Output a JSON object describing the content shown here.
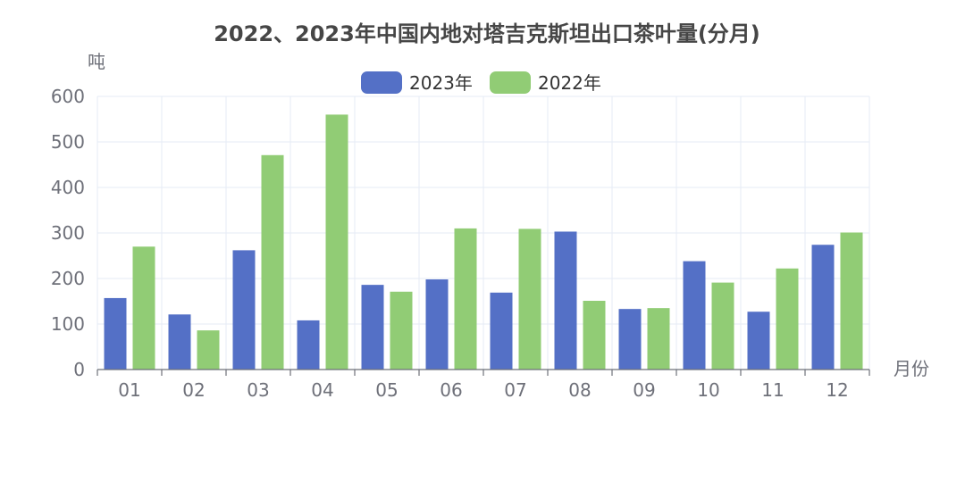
{
  "chart_data": {
    "type": "bar",
    "title": "2022、2023年中国内地对塔吉克斯坦出口茶叶量(分月)",
    "ylabel": "吨",
    "xlabel": "月份",
    "categories": [
      "01",
      "02",
      "03",
      "04",
      "05",
      "06",
      "07",
      "08",
      "09",
      "10",
      "11",
      "12"
    ],
    "ylim": [
      0,
      600
    ],
    "yticks": [
      0,
      100,
      200,
      300,
      400,
      500,
      600
    ],
    "grid": true,
    "legend_position": "top-center",
    "series": [
      {
        "name": "2023年",
        "color": "#5470c6",
        "values": [
          157,
          121,
          262,
          108,
          186,
          198,
          169,
          303,
          133,
          238,
          127,
          274
        ]
      },
      {
        "name": "2022年",
        "color": "#91cc75",
        "values": [
          270,
          86,
          471,
          560,
          171,
          310,
          309,
          151,
          135,
          191,
          222,
          301
        ]
      }
    ]
  }
}
